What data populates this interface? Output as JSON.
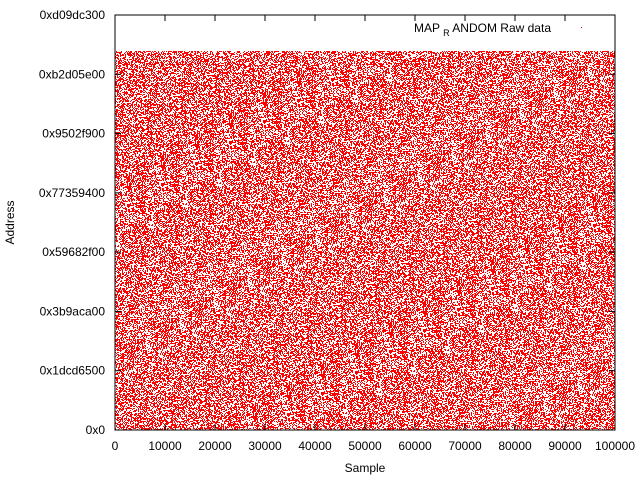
{
  "chart_data": {
    "type": "scatter",
    "title": "",
    "xlabel": "Sample",
    "ylabel": "Address",
    "xlim": [
      0,
      100000
    ],
    "ylim": [
      0,
      3500000000
    ],
    "x_ticks": [
      {
        "value": 0,
        "label": "0"
      },
      {
        "value": 10000,
        "label": "10000"
      },
      {
        "value": 20000,
        "label": "20000"
      },
      {
        "value": 30000,
        "label": "30000"
      },
      {
        "value": 40000,
        "label": "40000"
      },
      {
        "value": 50000,
        "label": "50000"
      },
      {
        "value": 60000,
        "label": "60000"
      },
      {
        "value": 70000,
        "label": "70000"
      },
      {
        "value": 80000,
        "label": "80000"
      },
      {
        "value": 90000,
        "label": "90000"
      },
      {
        "value": 100000,
        "label": "100000"
      }
    ],
    "y_ticks": [
      {
        "value": 0,
        "label": "0x0"
      },
      {
        "value": 500000000,
        "label": "0x1dcd6500"
      },
      {
        "value": 1000000000,
        "label": "0x3b9aca00"
      },
      {
        "value": 1500000000,
        "label": "0x59682f00"
      },
      {
        "value": 2000000000,
        "label": "0x77359400"
      },
      {
        "value": 2500000000,
        "label": "0x9502f900"
      },
      {
        "value": 3000000000,
        "label": "0xb2d05e00"
      },
      {
        "value": 3500000000,
        "label": "0xd09dc300"
      }
    ],
    "series": [
      {
        "name_main": "MAP",
        "name_sub": "R",
        "name_rest": "ANDOM Raw data",
        "color": "#ff0000",
        "distribution": "uniform random",
        "x_range": [
          0,
          100000
        ],
        "y_range": [
          0,
          3200000000
        ]
      }
    ],
    "grid": false,
    "legend_position": "top-right"
  }
}
